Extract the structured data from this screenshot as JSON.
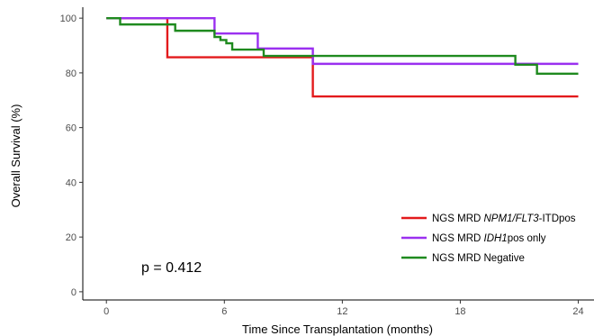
{
  "chart_data": {
    "type": "line",
    "subtype": "kaplan-meier step",
    "xlabel": "Time Since Transplantation (months)",
    "ylabel": "Overall Survival (%)",
    "xlim": [
      -1.2,
      24.8
    ],
    "ylim": [
      -3,
      104
    ],
    "xticks": [
      0,
      6,
      12,
      18,
      24
    ],
    "yticks": [
      0,
      20,
      40,
      60,
      80,
      100
    ],
    "grid": false,
    "legend_position": "bottom-right",
    "annotation": "p = 0.412",
    "series": [
      {
        "name_parts": [
          "NGS MRD ",
          "NPM1/FLT3",
          "-ITDpos"
        ],
        "name_italic": [
          false,
          true,
          false
        ],
        "color": "#e31a1c",
        "x": [
          0,
          3.1,
          10.5,
          24
        ],
        "y": [
          100,
          85.7,
          71.4,
          71.4
        ]
      },
      {
        "name_parts": [
          "NGS MRD ",
          "IDH1",
          "pos only"
        ],
        "name_italic": [
          false,
          true,
          false
        ],
        "color": "#9b30f0",
        "x": [
          0,
          5.5,
          7.7,
          10.5,
          24
        ],
        "y": [
          100,
          94.4,
          88.9,
          83.3,
          83.3
        ]
      },
      {
        "name_parts": [
          "NGS MRD Negative"
        ],
        "name_italic": [
          false
        ],
        "color": "#1f8a1f",
        "x": [
          0,
          0.7,
          3.5,
          5.5,
          5.8,
          6.1,
          6.4,
          8.0,
          20.8,
          21.9,
          24
        ],
        "y": [
          100,
          97.7,
          95.4,
          93.1,
          92.0,
          90.8,
          88.5,
          86.2,
          83.0,
          79.7,
          79.7
        ]
      }
    ]
  }
}
